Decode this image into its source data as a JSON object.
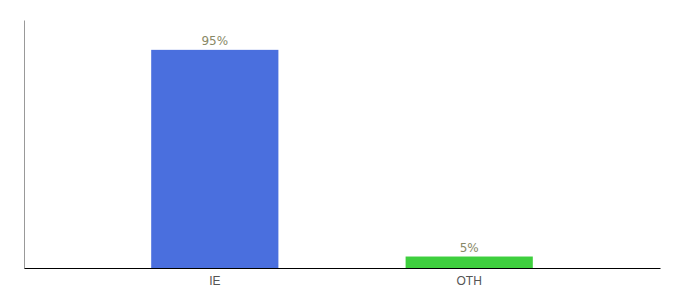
{
  "chart_data": {
    "type": "bar",
    "categories": [
      "IE",
      "OTH"
    ],
    "values": [
      95,
      5
    ],
    "colors": [
      "#4a6fde",
      "#3ecf3e"
    ],
    "value_labels": [
      "95%",
      "5%"
    ],
    "data_labels": true,
    "ylim": [
      0,
      108
    ],
    "grid": false,
    "tick_labels": "x"
  }
}
